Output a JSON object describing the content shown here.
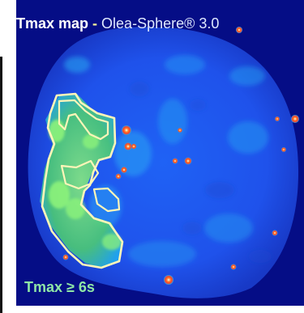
{
  "title": {
    "main": "Tmax map",
    "separator": " - ",
    "product": "Olea-Sphere® 3.0"
  },
  "threshold_label": "Tmax ≥ 6s",
  "colors": {
    "background": "#050d86",
    "tissue_blue": "#1d56f0",
    "tissue_cyan": "#23a9f2",
    "lesion_green": "#66e06e",
    "hotspot_red": "#ff4a2d",
    "contour_yellow": "#fff4b0"
  }
}
